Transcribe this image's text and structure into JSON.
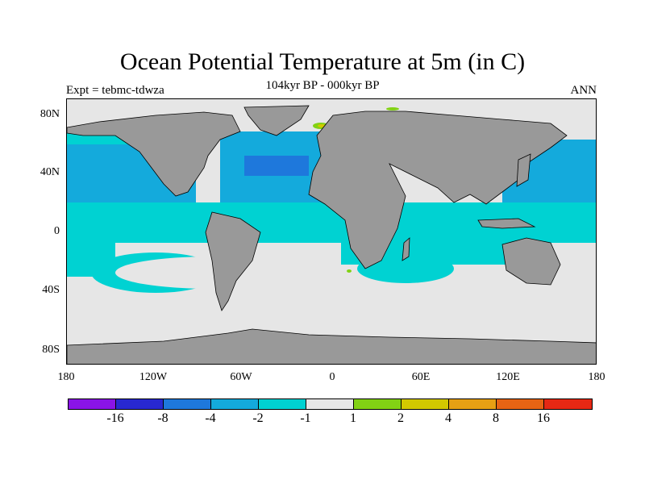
{
  "title": "Ocean Potential Temperature at 5m (in C)",
  "subtitle": "104kyr BP - 000kyr BP",
  "left_label": "Expt = tebmc-tdwza",
  "right_label": "ANN",
  "lat_ticks": [
    "80N",
    "40N",
    "0",
    "40S",
    "80S"
  ],
  "lon_ticks": [
    "180",
    "120W",
    "60W",
    "0",
    "60E",
    "120E",
    "180"
  ],
  "colorbar": {
    "colors": [
      "#8a14e6",
      "#2828d0",
      "#1e78dc",
      "#14aadc",
      "#00d2d2",
      "#e6e6e6",
      "#82d214",
      "#d2c800",
      "#e6a014",
      "#e66414",
      "#e62814"
    ],
    "labels": [
      "-16",
      "-8",
      "-4",
      "-2",
      "-1",
      "1",
      "2",
      "4",
      "8",
      "16"
    ]
  },
  "colors": {
    "land": "#999999",
    "ocean_neutral": "#e6e6e6",
    "cyan": "#00d2d2",
    "light_blue": "#14aadc",
    "mid_blue": "#1e78dc",
    "green": "#82d214",
    "yellow": "#d2c800"
  }
}
